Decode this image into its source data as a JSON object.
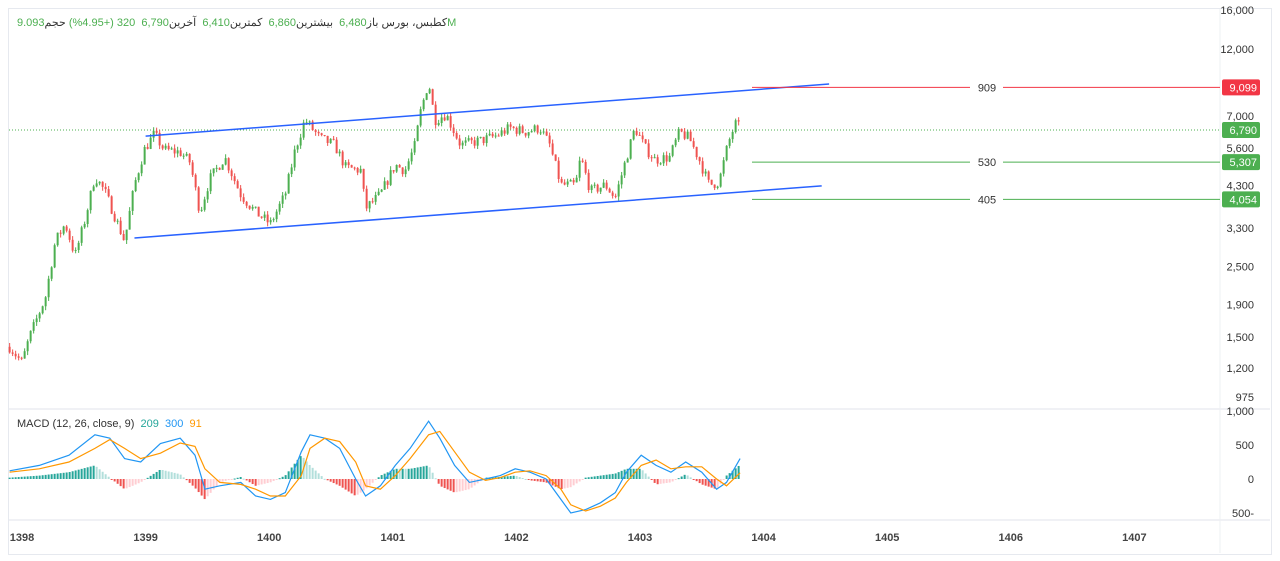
{
  "header": {
    "symbol": "کطبس، بورس",
    "open_label": "باز",
    "open": "6,480",
    "high_label": "بیشترین",
    "high": "6,860",
    "low_label": "کمترین",
    "low": "6,410",
    "last_label": "آخرین",
    "last": "6,790",
    "change": "320 (+4.95%)",
    "volume_label": "حجم",
    "volume": "9.093M"
  },
  "macd_legend": {
    "label": "MACD (12, 26, close, 9)",
    "hist": "209",
    "macd": "300",
    "signal": "91"
  },
  "colors": {
    "up": "#4caf50",
    "down": "#ef5350",
    "trend": "#2962ff",
    "resistance": "#f23645",
    "support": "#4caf50",
    "macd": "#2196f3",
    "signal": "#ff9800"
  },
  "chart_data": {
    "type": "candlestick",
    "price_scale": "log",
    "price_ticks": [
      "16,000",
      "12,000",
      "7,000",
      "5,600",
      "4,300",
      "3,300",
      "2,500",
      "1,900",
      "1,500",
      "1,200",
      "975"
    ],
    "x_ticks": [
      "1398",
      "1399",
      "1400",
      "1401",
      "1402",
      "1403",
      "1404",
      "1405",
      "1406",
      "1407"
    ],
    "close_path": [
      [
        1397.9,
        1400
      ],
      [
        1398.0,
        1250
      ],
      [
        1398.06,
        1500
      ],
      [
        1398.19,
        2000
      ],
      [
        1398.27,
        3000
      ],
      [
        1398.35,
        3400
      ],
      [
        1398.43,
        2700
      ],
      [
        1398.51,
        3500
      ],
      [
        1398.59,
        4800
      ],
      [
        1398.67,
        4300
      ],
      [
        1398.75,
        3600
      ],
      [
        1398.83,
        3000
      ],
      [
        1398.91,
        4500
      ],
      [
        1398.99,
        5800
      ],
      [
        1399.07,
        6500
      ],
      [
        1399.15,
        5800
      ],
      [
        1399.28,
        5700
      ],
      [
        1399.36,
        5300
      ],
      [
        1399.44,
        3700
      ],
      [
        1399.52,
        4700
      ],
      [
        1399.64,
        5500
      ],
      [
        1399.77,
        4200
      ],
      [
        1399.89,
        3700
      ],
      [
        1400.01,
        3400
      ],
      [
        1400.13,
        4200
      ],
      [
        1400.21,
        5800
      ],
      [
        1400.29,
        7200
      ],
      [
        1400.41,
        6300
      ],
      [
        1400.53,
        6000
      ],
      [
        1400.62,
        5100
      ],
      [
        1400.74,
        5000
      ],
      [
        1400.78,
        3800
      ],
      [
        1400.9,
        4200
      ],
      [
        1401.02,
        5200
      ],
      [
        1401.1,
        5000
      ],
      [
        1401.18,
        6000
      ],
      [
        1401.22,
        7500
      ],
      [
        1401.29,
        9500
      ],
      [
        1401.34,
        7200
      ],
      [
        1401.43,
        7500
      ],
      [
        1401.55,
        6000
      ],
      [
        1401.71,
        6200
      ],
      [
        1401.83,
        6400
      ],
      [
        1401.95,
        6800
      ],
      [
        1402.07,
        6600
      ],
      [
        1402.19,
        6800
      ],
      [
        1402.27,
        6000
      ],
      [
        1402.36,
        4500
      ],
      [
        1402.48,
        4500
      ],
      [
        1402.52,
        5500
      ],
      [
        1402.6,
        4300
      ],
      [
        1402.72,
        4500
      ],
      [
        1402.8,
        4100
      ],
      [
        1402.88,
        5300
      ],
      [
        1402.96,
        6800
      ],
      [
        1403.04,
        5900
      ],
      [
        1403.12,
        5400
      ],
      [
        1403.24,
        5500
      ],
      [
        1403.32,
        6600
      ],
      [
        1403.4,
        6300
      ],
      [
        1403.48,
        5400
      ],
      [
        1403.56,
        4500
      ],
      [
        1403.64,
        4600
      ],
      [
        1403.71,
        6000
      ],
      [
        1403.77,
        7000
      ],
      [
        1403.81,
        6790
      ]
    ],
    "trend_lines": [
      {
        "name": "upper-channel",
        "from": [
          1399.0,
          6400
        ],
        "to": [
          1404.53,
          9320
        ]
      },
      {
        "name": "lower-channel",
        "from": [
          1398.91,
          3070
        ],
        "to": [
          1404.47,
          4470
        ]
      }
    ],
    "levels": [
      {
        "label": "909",
        "value": 9099,
        "price_label": "9,099",
        "color": "#f23645"
      },
      {
        "label": "530",
        "value": 5307,
        "price_label": "5,307",
        "color": "#4caf50"
      },
      {
        "label": "405",
        "value": 4054,
        "price_label": "4,054",
        "color": "#4caf50"
      }
    ],
    "current_price": {
      "value": 6790,
      "label": "6,790"
    },
    "macd": {
      "ticks": [
        "1,000",
        "500",
        "0",
        "500-"
      ],
      "x": [
        1397.9,
        1398.14,
        1398.38,
        1398.59,
        1398.71,
        1398.83,
        1398.96,
        1399.12,
        1399.28,
        1399.4,
        1399.48,
        1399.6,
        1399.77,
        1399.89,
        1400.01,
        1400.13,
        1400.26,
        1400.33,
        1400.45,
        1400.57,
        1400.7,
        1400.78,
        1400.9,
        1401.02,
        1401.14,
        1401.29,
        1401.38,
        1401.5,
        1401.62,
        1401.75,
        1401.87,
        1401.99,
        1402.11,
        1402.24,
        1402.36,
        1402.44,
        1402.56,
        1402.68,
        1402.8,
        1402.89,
        1403.01,
        1403.13,
        1403.25,
        1403.37,
        1403.5,
        1403.62,
        1403.7,
        1403.81
      ],
      "macd_line": [
        120,
        200,
        350,
        650,
        600,
        300,
        250,
        520,
        600,
        350,
        -150,
        -100,
        -50,
        -250,
        -300,
        -200,
        400,
        650,
        600,
        450,
        0,
        -250,
        -100,
        200,
        450,
        850,
        600,
        200,
        -50,
        0,
        50,
        150,
        100,
        0,
        -300,
        -500,
        -450,
        -350,
        -200,
        100,
        350,
        200,
        100,
        250,
        100,
        -150,
        -50,
        300
      ],
      "signal_line": [
        100,
        150,
        250,
        450,
        580,
        450,
        300,
        380,
        530,
        480,
        150,
        -50,
        -80,
        -150,
        -250,
        -250,
        50,
        450,
        600,
        550,
        250,
        -100,
        -150,
        50,
        300,
        650,
        700,
        400,
        100,
        -20,
        20,
        100,
        120,
        50,
        -150,
        -380,
        -470,
        -400,
        -280,
        -50,
        200,
        280,
        150,
        180,
        180,
        0,
        -100,
        91
      ]
    }
  }
}
